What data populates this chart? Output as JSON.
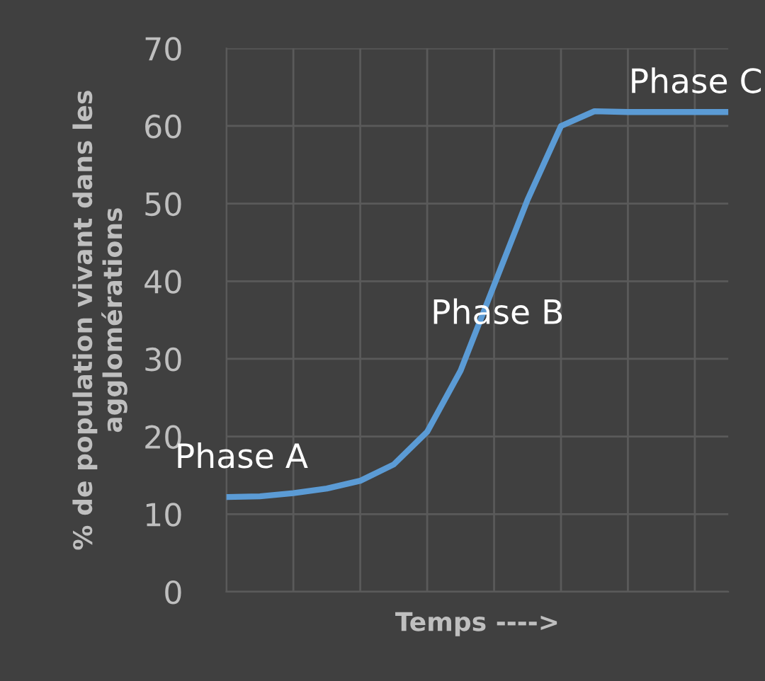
{
  "chart_data": {
    "type": "line",
    "xlabel": "Temps ---->",
    "ylabel": "% de population vivant dans les agglomérations",
    "categories": [
      null,
      null,
      null,
      null,
      null,
      null,
      null,
      null,
      null,
      null,
      null,
      null,
      null,
      null,
      null,
      null
    ],
    "series": [
      {
        "color": "#5b9bd5",
        "values": [
          12.2,
          12.3,
          12.7,
          13.3,
          14.3,
          16.4,
          20.6,
          28.5,
          39.5,
          50.5,
          60,
          61.9,
          61.8,
          61.8,
          61.8,
          61.8
        ]
      }
    ],
    "ylim": [
      0,
      70
    ],
    "yticks": [
      0,
      10,
      20,
      30,
      40,
      50,
      60,
      70
    ],
    "grid": true,
    "tick_labels": "y",
    "marker": "none",
    "line_style": "solid",
    "legend": false,
    "annotations": [
      "Phase A",
      "Phase B",
      "Phase C"
    ]
  }
}
